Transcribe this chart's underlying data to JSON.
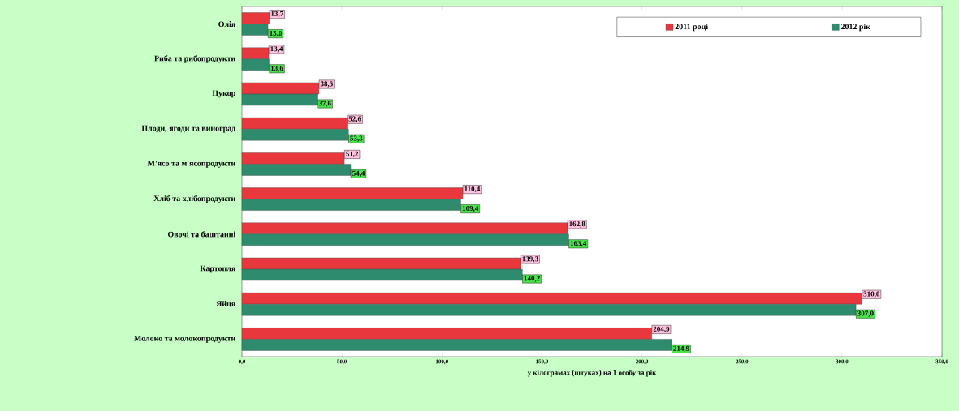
{
  "chart_data": {
    "type": "bar",
    "orientation": "horizontal",
    "legend": "top right",
    "xlabel": "у кілограмах (штуках) на 1 особу за рік",
    "categories": [
      "Олія",
      "Риба та рибопродукти",
      "Цукор",
      "Плоди, ягоди та виноград",
      "М'ясо та м'ясопродукти",
      "Хліб та хлібопродукти",
      "Овочі та баштанні",
      "Картопля",
      "Яйця",
      "Молоко та молокопродукти"
    ],
    "series": [
      {
        "name": "2011 році",
        "color": "#e8383d",
        "values": [
          13.7,
          13.4,
          38.5,
          52.6,
          51.2,
          110.4,
          162.8,
          139.3,
          310.0,
          204.9
        ],
        "value_labels": [
          "13,7",
          "13,4",
          "38,5",
          "52,6",
          "51,2",
          "110,4",
          "162,8",
          "139,3",
          "310,0",
          "204,9"
        ]
      },
      {
        "name": "2012 рік",
        "color": "#2e8b6e",
        "values": [
          13.0,
          13.6,
          37.6,
          53.3,
          54.4,
          109.4,
          163.4,
          140.2,
          307.0,
          214.9
        ],
        "value_labels": [
          "13,0",
          "13,6",
          "37,6",
          "53,3",
          "54,4",
          "109,4",
          "163,4",
          "140,2",
          "307,0",
          "214,9"
        ]
      }
    ],
    "xlim": [
      0,
      350
    ],
    "xticks": [
      {
        "value": 0,
        "label": "0,0"
      },
      {
        "value": 50,
        "label": "50,0"
      },
      {
        "value": 100,
        "label": "100,0"
      },
      {
        "value": 150,
        "label": "150,0"
      },
      {
        "value": 200,
        "label": "200,0"
      },
      {
        "value": 250,
        "label": "250,0"
      },
      {
        "value": 300,
        "label": "300,0"
      },
      {
        "value": 350,
        "label": "350,0"
      }
    ]
  }
}
